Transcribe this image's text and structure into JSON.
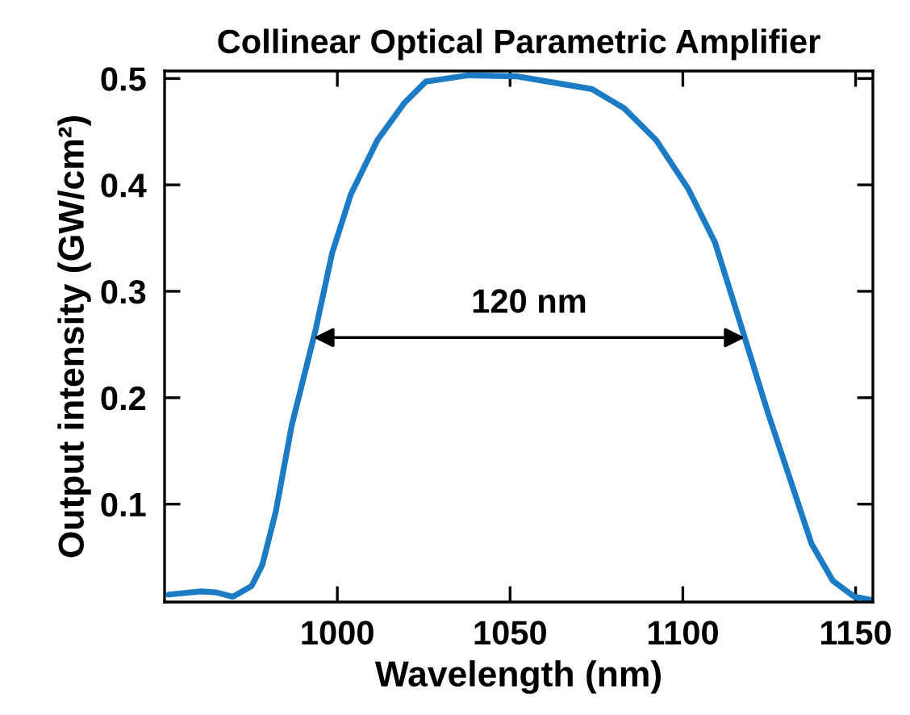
{
  "chart_data": {
    "type": "line",
    "title": "Collinear Optical Parametric Amplifier",
    "xlabel": "Wavelength (nm)",
    "ylabel": "Output intensity (GW/cm²)",
    "series": [
      {
        "color": "#1b7bc4",
        "x": [
          951.2,
          960.5,
          965.1,
          969.8,
          975.2,
          978.3,
          982.2,
          986.8,
          991.5,
          993.8,
          998.5,
          1003.9,
          1011.6,
          1019.4,
          1025.6,
          1038,
          1052,
          1073.7,
          1083,
          1092.3,
          1101.6,
          1109.3,
          1117.1,
          1124.8,
          1131,
          1137.2,
          1143.4,
          1149.6,
          1154.3
        ],
        "values": [
          0.015,
          0.018,
          0.017,
          0.013,
          0.023,
          0.043,
          0.093,
          0.174,
          0.235,
          0.265,
          0.336,
          0.391,
          0.442,
          0.477,
          0.497,
          0.503,
          0.502,
          0.49,
          0.472,
          0.442,
          0.396,
          0.346,
          0.265,
          0.184,
          0.124,
          0.063,
          0.028,
          0.013,
          0.01
        ]
      }
    ],
    "annotations": [
      "120 nm"
    ],
    "xlim": [
      950,
      1155
    ],
    "ylim": [
      0.008,
      0.507
    ],
    "xticks": [
      1000,
      1050,
      1100,
      1150
    ],
    "yticks": [
      0.1,
      0.2,
      0.3,
      0.4,
      0.5
    ],
    "grid": false,
    "legend": false,
    "marker": "none",
    "line_style": "solid"
  }
}
